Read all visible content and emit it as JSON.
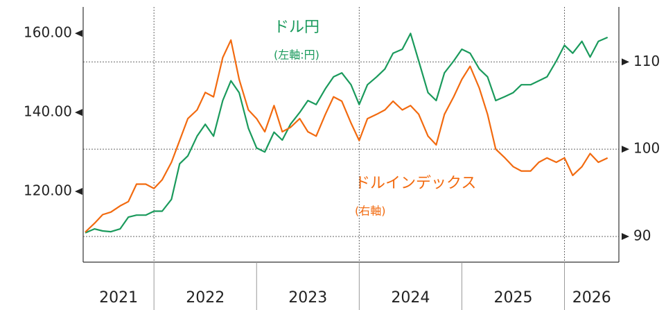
{
  "chart_data": {
    "type": "line",
    "x": [
      2021.33,
      2021.42,
      2021.5,
      2021.58,
      2021.67,
      2021.75,
      2021.83,
      2021.92,
      2022.0,
      2022.08,
      2022.17,
      2022.25,
      2022.33,
      2022.42,
      2022.5,
      2022.58,
      2022.67,
      2022.75,
      2022.83,
      2022.92,
      2023.0,
      2023.08,
      2023.17,
      2023.25,
      2023.33,
      2023.42,
      2023.5,
      2023.58,
      2023.67,
      2023.75,
      2023.83,
      2023.92,
      2024.0,
      2024.08,
      2024.17,
      2024.25,
      2024.33,
      2024.42,
      2024.5,
      2024.58,
      2024.67,
      2024.75,
      2024.83,
      2024.92,
      2025.0,
      2025.08,
      2025.17,
      2025.25,
      2025.33,
      2025.42,
      2025.5,
      2025.58,
      2025.67,
      2025.75,
      2025.83,
      2025.92,
      2026.0,
      2026.08,
      2026.17,
      2026.25,
      2026.33,
      2026.42
    ],
    "series": [
      {
        "name": "ドル円",
        "color": "#1a9a5c",
        "axis": "y",
        "values": [
          109.5,
          110.5,
          110,
          109.8,
          110.5,
          113.5,
          114,
          114,
          115,
          115,
          118,
          127,
          129,
          134,
          137,
          134,
          143,
          148,
          145,
          136,
          131,
          130,
          135,
          133,
          137,
          140,
          143,
          142,
          146,
          149,
          150,
          147,
          142,
          147,
          149,
          151,
          155,
          156,
          160,
          153,
          145,
          143,
          150,
          153,
          156,
          155,
          151,
          149,
          143,
          144,
          145,
          147,
          147,
          148,
          149,
          153,
          157,
          155,
          158,
          154,
          158,
          159
        ]
      },
      {
        "name": "ドルインデックス",
        "color": "#f26a0f",
        "axis": "y2",
        "values": [
          90.5,
          91.5,
          92.5,
          92.8,
          93.5,
          94,
          96,
          96,
          95.5,
          96.5,
          98.5,
          101,
          103.5,
          104.5,
          106.5,
          106,
          110.5,
          112.5,
          108,
          104.5,
          103.5,
          102,
          105,
          102,
          102.5,
          103.5,
          102,
          101.5,
          104,
          106,
          105.5,
          103,
          101,
          103.5,
          104,
          104.5,
          105.5,
          104.5,
          105,
          104,
          101.5,
          100.5,
          104,
          106,
          108,
          109.5,
          107,
          104,
          100,
          99,
          98,
          97.5,
          97.5,
          98.5,
          99,
          98.5,
          99,
          97,
          98,
          99.5,
          98.5,
          99
        ]
      }
    ],
    "annotations": [
      "(左軸:円)",
      "(右軸)"
    ],
    "year_labels": [
      "2021",
      "2022",
      "2023",
      "2024",
      "2025",
      "2026"
    ],
    "xlim": [
      2021.31,
      2026.53
    ],
    "xticks": [
      2022,
      2023,
      2024,
      2025,
      2026
    ],
    "xgrid": [
      2022,
      2024,
      2026
    ],
    "ylim": [
      102.1,
      166.7
    ],
    "yticks": [
      {
        "value": 120,
        "label": "120.00"
      },
      {
        "value": 140,
        "label": "140.00"
      },
      {
        "value": 160,
        "label": "160.00"
      }
    ],
    "y2lim": [
      87.06,
      116.3
    ],
    "y2ticks": [
      90,
      100,
      110
    ],
    "grid": true
  }
}
